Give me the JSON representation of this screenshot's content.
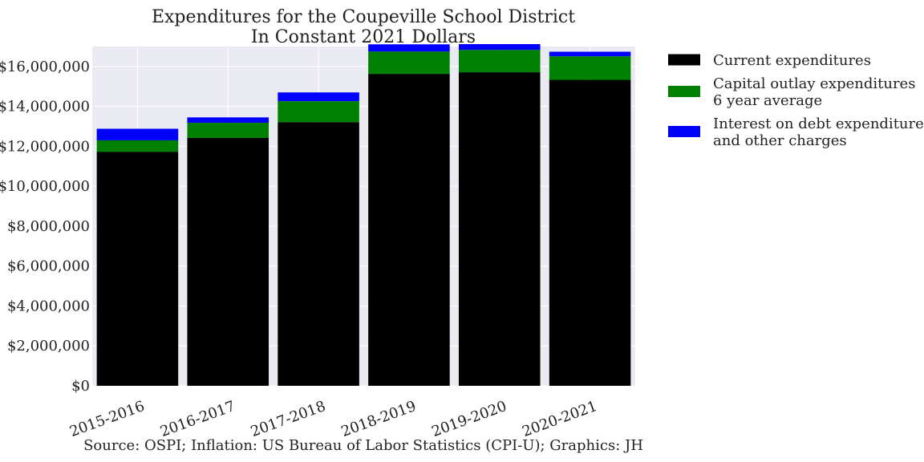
{
  "chart_data": {
    "type": "bar",
    "stacked": true,
    "title": "Expenditures for the Coupeville School District",
    "subtitle": "In Constant 2021 Dollars",
    "xlabel": "",
    "ylabel": "",
    "categories": [
      "2015-2016",
      "2016-2017",
      "2017-2018",
      "2018-2019",
      "2019-2020",
      "2020-2021"
    ],
    "series": [
      {
        "name": "Current expenditures",
        "color": "#000000",
        "values": [
          11730000,
          12420000,
          13210000,
          15630000,
          15710000,
          15330000
        ]
      },
      {
        "name": "Capital outlay expenditures\n6 year average",
        "color": "#008000",
        "values": [
          570000,
          760000,
          1050000,
          1120000,
          1120000,
          1180000
        ]
      },
      {
        "name": "Interest on debt expenditures\nand other charges",
        "color": "#0000ff",
        "values": [
          580000,
          270000,
          440000,
          360000,
          290000,
          230000
        ]
      }
    ],
    "ylim": [
      0,
      17000000
    ],
    "yticks": [
      0,
      2000000,
      4000000,
      6000000,
      8000000,
      10000000,
      12000000,
      14000000,
      16000000
    ],
    "ytick_labels": [
      "$0",
      "$2,000,000",
      "$4,000,000",
      "$6,000,000",
      "$8,000,000",
      "$10,000,000",
      "$12,000,000",
      "$14,000,000",
      "$16,000,000"
    ],
    "grid": true,
    "legend_position": "outside-right-top",
    "plot_background": "#eaeaf2",
    "source_note": "Source: OSPI; Inflation: US Bureau of Labor Statistics (CPI-U); Graphics: JH"
  }
}
